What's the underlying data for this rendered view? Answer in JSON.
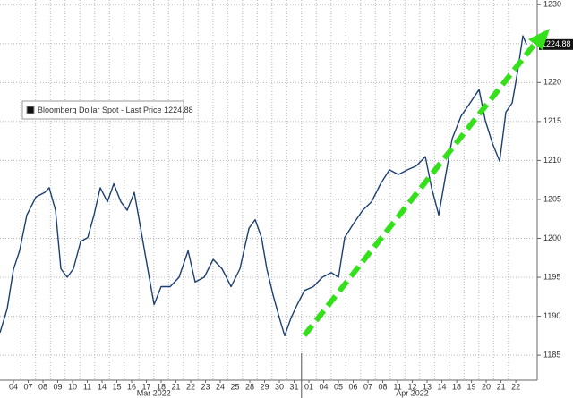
{
  "chart_data": {
    "type": "line",
    "legend": "Bloomberg Dollar Spot - Last Price 1224.88",
    "last_price": 1224.88,
    "month_labels": [
      "Mar 2022",
      "Apr 2022"
    ],
    "xlim": [
      -0.91,
      35.45
    ],
    "xticks": [
      {
        "value": 0,
        "label": "04"
      },
      {
        "value": 1,
        "label": "07"
      },
      {
        "value": 2,
        "label": "08"
      },
      {
        "value": 3,
        "label": "09"
      },
      {
        "value": 4,
        "label": "10"
      },
      {
        "value": 5,
        "label": "11"
      },
      {
        "value": 6,
        "label": "14"
      },
      {
        "value": 7,
        "label": "15"
      },
      {
        "value": 8,
        "label": "16"
      },
      {
        "value": 9,
        "label": "17"
      },
      {
        "value": 10,
        "label": "18"
      },
      {
        "value": 11,
        "label": "21"
      },
      {
        "value": 12,
        "label": "22"
      },
      {
        "value": 13,
        "label": "23"
      },
      {
        "value": 14,
        "label": "24"
      },
      {
        "value": 15,
        "label": "25"
      },
      {
        "value": 16,
        "label": "28"
      },
      {
        "value": 17,
        "label": "29"
      },
      {
        "value": 18,
        "label": "30"
      },
      {
        "value": 19,
        "label": "31"
      },
      {
        "value": 20,
        "label": "01"
      },
      {
        "value": 21,
        "label": "04"
      },
      {
        "value": 22,
        "label": "05"
      },
      {
        "value": 23,
        "label": "06"
      },
      {
        "value": 24,
        "label": "07"
      },
      {
        "value": 25,
        "label": "08"
      },
      {
        "value": 26,
        "label": "11"
      },
      {
        "value": 27,
        "label": "12"
      },
      {
        "value": 28,
        "label": "13"
      },
      {
        "value": 29,
        "label": "14"
      },
      {
        "value": 30,
        "label": "18"
      },
      {
        "value": 31,
        "label": "19"
      },
      {
        "value": 32,
        "label": "20"
      },
      {
        "value": 33,
        "label": "21"
      },
      {
        "value": 34,
        "label": "22"
      }
    ],
    "ylim": [
      1181.8,
      1230.6
    ],
    "yticks": [
      1185,
      1190,
      1195,
      1200,
      1205,
      1210,
      1215,
      1220,
      1225,
      1230
    ],
    "grid": true,
    "series": [
      {
        "name": "Bloomberg Dollar Spot - Last Price 1224.88",
        "color": "#1c3f73",
        "x": [
          -0.91,
          -0.42,
          0,
          0.42,
          0.91,
          1.52,
          2.12,
          2.42,
          2.85,
          3.21,
          3.64,
          4.06,
          4.55,
          5.03,
          5.45,
          5.88,
          6.36,
          6.79,
          7.27,
          7.7,
          8.18,
          8.61,
          9.09,
          9.52,
          10,
          10.61,
          11.21,
          11.82,
          12.3,
          12.91,
          13.52,
          14.12,
          14.73,
          15.33,
          15.94,
          16.36,
          16.79,
          17.15,
          17.58,
          18,
          18.36,
          18.79,
          19.21,
          19.7,
          20.3,
          20.91,
          21.52,
          22,
          22.42,
          23.03,
          23.64,
          24.24,
          24.85,
          25.45,
          26.06,
          26.67,
          27.27,
          27.88,
          28.3,
          28.79,
          29.21,
          29.7,
          30.3,
          30.91,
          31.52,
          31.94,
          32.42,
          32.91,
          33.33,
          33.76,
          34.12,
          34.48,
          34.73
        ],
        "values": [
          1187.9,
          1191,
          1196,
          1198.4,
          1203,
          1205.3,
          1205.9,
          1206.5,
          1203.6,
          1196.1,
          1195,
          1196.1,
          1199.6,
          1200.1,
          1203,
          1206.5,
          1204.7,
          1207,
          1204.7,
          1203.6,
          1205.9,
          1201.3,
          1196.1,
          1191.5,
          1193.8,
          1193.8,
          1195,
          1198.4,
          1194.4,
          1195,
          1197.3,
          1196.1,
          1193.8,
          1196.1,
          1201.3,
          1202.4,
          1200.1,
          1196.1,
          1192.7,
          1189.8,
          1187.5,
          1189.8,
          1191.5,
          1193.3,
          1193.8,
          1195,
          1195.6,
          1195,
          1200.1,
          1201.9,
          1203.6,
          1204.7,
          1207,
          1208.8,
          1208.2,
          1208.8,
          1209.3,
          1210.5,
          1206.5,
          1203,
          1207.6,
          1212.8,
          1215.7,
          1217.4,
          1219.1,
          1215.1,
          1212.2,
          1209.9,
          1216.2,
          1217.4,
          1221.4,
          1226,
          1224.88
        ]
      }
    ]
  }
}
